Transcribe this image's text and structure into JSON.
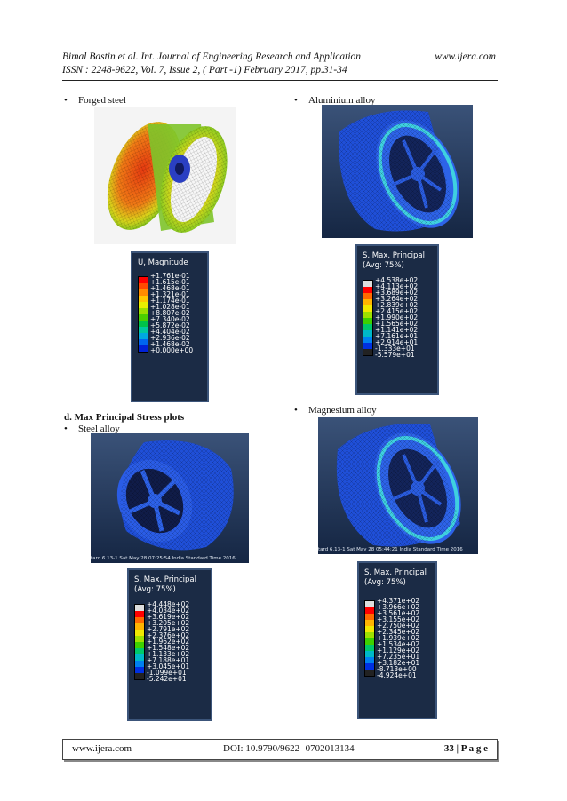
{
  "header": {
    "line1": "Bimal Bastin et al. Int. Journal of Engineering Research and Application",
    "website": "www.ijera.com",
    "line2": "ISSN : 2248-9622, Vol. 7, Issue 2, ( Part -1) February 2017, pp.31-34"
  },
  "section_heading": "d. Max Principal Stress plots",
  "panels": {
    "forged": {
      "caption": "Forged steel",
      "legend_title": "U, Magnitude",
      "values": [
        "+1.761e-01",
        "+1.615e-01",
        "+1.468e-01",
        "+1.321e-01",
        "+1.174e-01",
        "+1.028e-01",
        "+8.807e-02",
        "+7.340e-02",
        "+5.872e-02",
        "+4.404e-02",
        "+2.936e-02",
        "+1.468e-02",
        "+0.000e+00"
      ]
    },
    "aluminium": {
      "caption": "Aluminium alloy",
      "legend_title": "S, Max. Principal\n(Avg: 75%)",
      "values": [
        "+4.538e+02",
        "+4.113e+02",
        "+3.689e+02",
        "+3.264e+02",
        "+2.839e+02",
        "+2.415e+02",
        "+1.990e+02",
        "+1.565e+02",
        "+1.141e+02",
        "+7.161e+01",
        "+2.914e+01",
        "-1.333e+01",
        "-5.579e+01"
      ]
    },
    "steel": {
      "caption": "Steel alloy",
      "timestamp": "tard 6.13-1    Sat May 28 07:25:54 India Standard Time 2016",
      "legend_title": "S, Max. Principal\n(Avg: 75%)",
      "values": [
        "+4.448e+02",
        "+4.034e+02",
        "+3.619e+02",
        "+3.205e+02",
        "+2.791e+02",
        "+2.376e+02",
        "+1.962e+02",
        "+1.548e+02",
        "+1.133e+02",
        "+7.188e+01",
        "+3.045e+01",
        "-1.099e+01",
        "-5.242e+01"
      ]
    },
    "magnesium": {
      "caption": "Magnesium alloy",
      "timestamp": "tard 6.13-1    Sat May 28 05:44:21 India Standard Time 2016",
      "legend_title": "S, Max. Principal\n(Avg: 75%)",
      "values": [
        "+4.371e+02",
        "+3.966e+02",
        "+3.561e+02",
        "+3.155e+02",
        "+2.750e+02",
        "+2.345e+02",
        "+1.939e+02",
        "+1.534e+02",
        "+1.129e+02",
        "+7.235e+01",
        "+3.182e+01",
        "-8.713e+00",
        "-4.924e+01"
      ]
    }
  },
  "footer": {
    "website": "www.ijera.com",
    "doi": "DOI:  10.9790/9622 -0702013134",
    "page_label": "33 | P a g e"
  }
}
